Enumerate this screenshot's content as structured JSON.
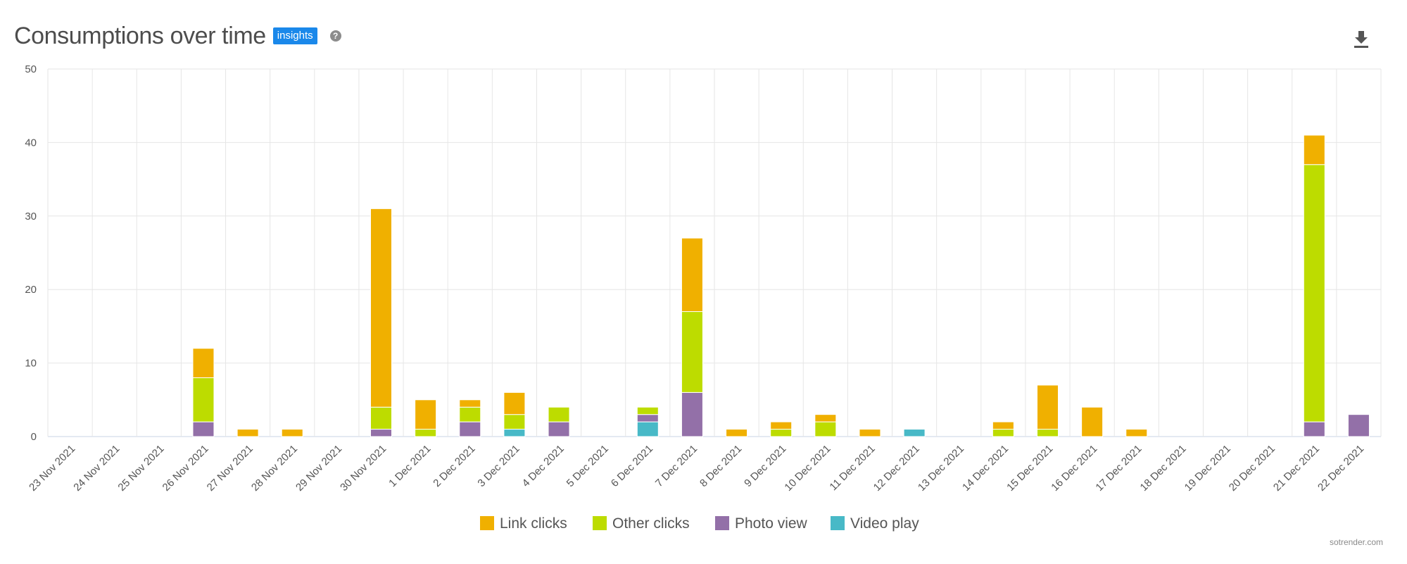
{
  "header": {
    "title": "Consumptions over time",
    "badge": "insights",
    "help_icon": "question-circle-icon",
    "download_icon": "download-icon"
  },
  "credit": "sotrender.com",
  "chart_data": {
    "type": "bar",
    "stacked": true,
    "title": "Consumptions over time",
    "xlabel": "",
    "ylabel": "",
    "ylim": [
      0,
      50
    ],
    "yticks": [
      0,
      10,
      20,
      30,
      40,
      50
    ],
    "grid": true,
    "legend_position": "bottom-center",
    "categories": [
      "23 Nov 2021",
      "24 Nov 2021",
      "25 Nov 2021",
      "26 Nov 2021",
      "27 Nov 2021",
      "28 Nov 2021",
      "29 Nov 2021",
      "30 Nov 2021",
      "1 Dec 2021",
      "2 Dec 2021",
      "3 Dec 2021",
      "4 Dec 2021",
      "5 Dec 2021",
      "6 Dec 2021",
      "7 Dec 2021",
      "8 Dec 2021",
      "9 Dec 2021",
      "10 Dec 2021",
      "11 Dec 2021",
      "12 Dec 2021",
      "13 Dec 2021",
      "14 Dec 2021",
      "15 Dec 2021",
      "16 Dec 2021",
      "17 Dec 2021",
      "18 Dec 2021",
      "19 Dec 2021",
      "20 Dec 2021",
      "21 Dec 2021",
      "22 Dec 2021"
    ],
    "series": [
      {
        "name": "Video play",
        "color": "#48b9c7",
        "values": [
          0,
          0,
          0,
          0,
          0,
          0,
          0,
          0,
          0,
          0,
          1,
          0,
          0,
          2,
          0,
          0,
          0,
          0,
          0,
          1,
          0,
          0,
          0,
          0,
          0,
          0,
          0,
          0,
          0,
          0
        ]
      },
      {
        "name": "Photo view",
        "color": "#9370a8",
        "values": [
          0,
          0,
          0,
          2,
          0,
          0,
          0,
          1,
          0,
          2,
          0,
          2,
          0,
          1,
          6,
          0,
          0,
          0,
          0,
          0,
          0,
          0,
          0,
          0,
          0,
          0,
          0,
          0,
          2,
          3
        ]
      },
      {
        "name": "Other clicks",
        "color": "#bddc00",
        "values": [
          0,
          0,
          0,
          6,
          0,
          0,
          0,
          3,
          1,
          2,
          2,
          2,
          0,
          1,
          11,
          0,
          1,
          2,
          0,
          0,
          0,
          1,
          1,
          0,
          0,
          0,
          0,
          0,
          35,
          0
        ]
      },
      {
        "name": "Link clicks",
        "color": "#f0b000",
        "values": [
          0,
          0,
          0,
          4,
          1,
          1,
          0,
          27,
          4,
          1,
          3,
          0,
          0,
          0,
          10,
          1,
          1,
          1,
          1,
          0,
          0,
          1,
          6,
          4,
          1,
          0,
          0,
          0,
          4,
          0
        ]
      }
    ],
    "legend": [
      "Link clicks",
      "Other clicks",
      "Photo view",
      "Video play"
    ]
  }
}
